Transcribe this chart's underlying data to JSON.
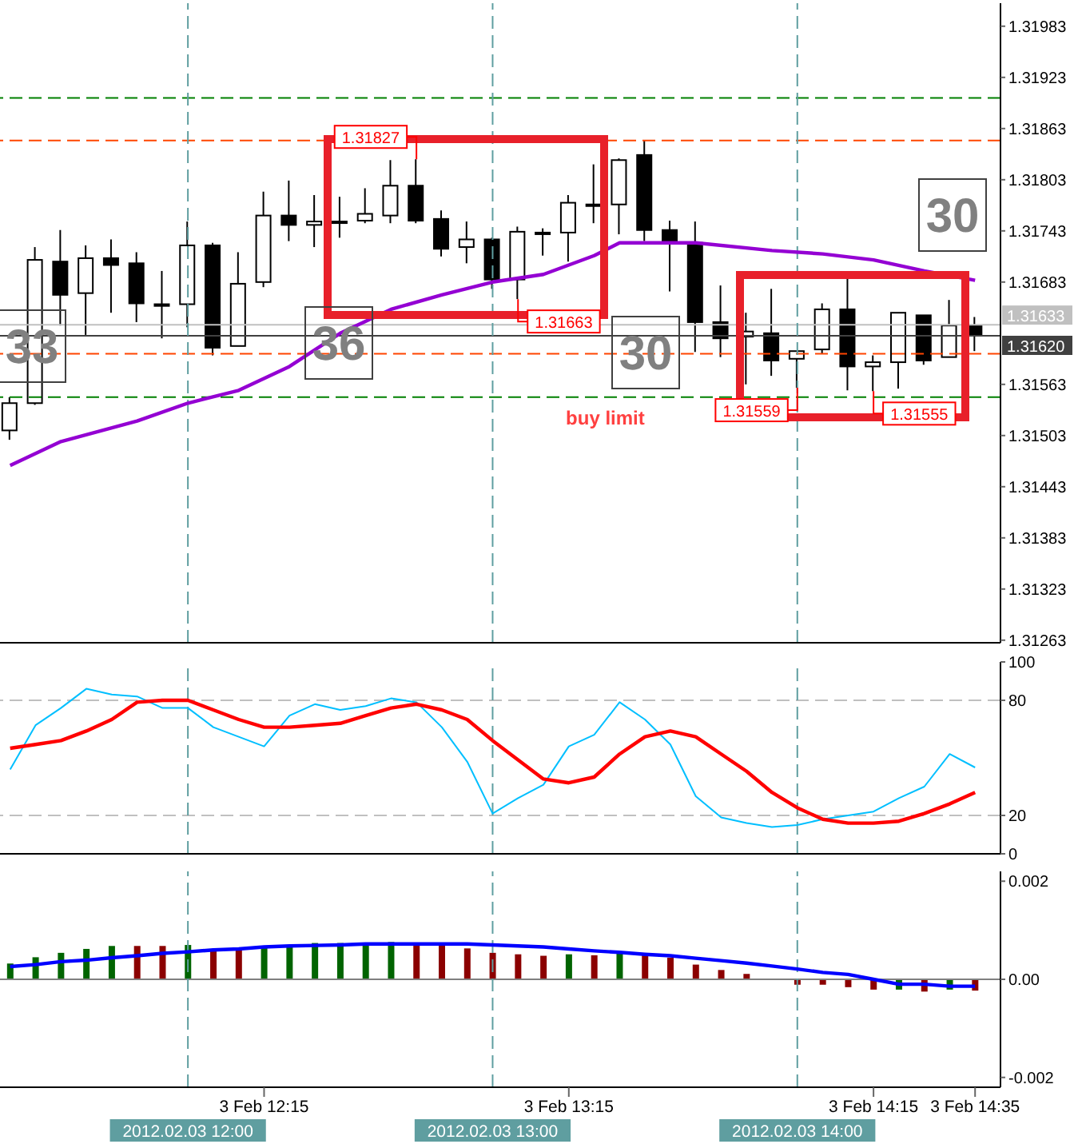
{
  "chart_data": [
    {
      "type": "candlestick",
      "x": [
        "2012-02-03T11:25",
        "2012-02-03T11:30",
        "2012-02-03T11:35",
        "2012-02-03T11:40",
        "2012-02-03T11:45",
        "2012-02-03T11:50",
        "2012-02-03T11:55",
        "2012-02-03T12:00",
        "2012-02-03T12:05",
        "2012-02-03T12:10",
        "2012-02-03T12:15",
        "2012-02-03T12:20",
        "2012-02-03T12:25",
        "2012-02-03T12:30",
        "2012-02-03T12:35",
        "2012-02-03T12:40",
        "2012-02-03T12:45",
        "2012-02-03T12:50",
        "2012-02-03T12:55",
        "2012-02-03T13:00",
        "2012-02-03T13:05",
        "2012-02-03T13:10",
        "2012-02-03T13:15",
        "2012-02-03T13:20",
        "2012-02-03T13:25",
        "2012-02-03T13:30",
        "2012-02-03T13:35",
        "2012-02-03T13:40",
        "2012-02-03T13:45",
        "2012-02-03T13:50",
        "2012-02-03T13:55",
        "2012-02-03T14:00",
        "2012-02-03T14:05",
        "2012-02-03T14:10",
        "2012-02-03T14:15",
        "2012-02-03T14:20",
        "2012-02-03T14:25",
        "2012-02-03T14:30",
        "2012-02-03T14:35"
      ],
      "ohlc": [
        [
          1.31509,
          1.31548,
          1.31498,
          1.31541
        ],
        [
          1.31541,
          1.31724,
          1.31539,
          1.31709
        ],
        [
          1.31707,
          1.31744,
          1.31632,
          1.31668
        ],
        [
          1.3167,
          1.31726,
          1.31621,
          1.31711
        ],
        [
          1.31711,
          1.31733,
          1.31647,
          1.31703
        ],
        [
          1.31705,
          1.31718,
          1.31636,
          1.31658
        ],
        [
          1.31657,
          1.31696,
          1.31617,
          1.31655
        ],
        [
          1.31657,
          1.31754,
          1.3163,
          1.31726
        ],
        [
          1.31726,
          1.31729,
          1.31597,
          1.31606
        ],
        [
          1.31608,
          1.31718,
          1.31608,
          1.31681
        ],
        [
          1.31683,
          1.31789,
          1.31677,
          1.31761
        ],
        [
          1.31761,
          1.31802,
          1.31731,
          1.3175
        ],
        [
          1.3175,
          1.31785,
          1.31724,
          1.31754
        ],
        [
          1.31754,
          1.31783,
          1.31735,
          1.31754
        ],
        [
          1.31755,
          1.31793,
          1.31752,
          1.31763
        ],
        [
          1.31761,
          1.31826,
          1.31752,
          1.31796
        ],
        [
          1.31796,
          1.31827,
          1.31752,
          1.31755
        ],
        [
          1.31757,
          1.31767,
          1.31713,
          1.31722
        ],
        [
          1.31724,
          1.31754,
          1.31705,
          1.31733
        ],
        [
          1.31733,
          1.31735,
          1.31675,
          1.31686
        ],
        [
          1.31686,
          1.31748,
          1.31663,
          1.31742
        ],
        [
          1.31741,
          1.31746,
          1.31714,
          1.3174
        ],
        [
          1.31741,
          1.31785,
          1.31707,
          1.31776
        ],
        [
          1.31774,
          1.31821,
          1.31752,
          1.31774
        ],
        [
          1.31774,
          1.31828,
          1.31739,
          1.31826
        ],
        [
          1.31832,
          1.31849,
          1.31731,
          1.31744
        ],
        [
          1.31744,
          1.31755,
          1.31672,
          1.31729
        ],
        [
          1.31729,
          1.31754,
          1.31601,
          1.31636
        ],
        [
          1.31636,
          1.31679,
          1.31595,
          1.31617
        ],
        [
          1.31619,
          1.31647,
          1.31563,
          1.31625
        ],
        [
          1.31623,
          1.31675,
          1.31573,
          1.31591
        ],
        [
          1.31593,
          1.31602,
          1.31559,
          1.31602
        ],
        [
          1.31604,
          1.31658,
          1.31599,
          1.31651
        ],
        [
          1.31651,
          1.31692,
          1.31556,
          1.31584
        ],
        [
          1.31584,
          1.31597,
          1.31555,
          1.31589
        ],
        [
          1.31589,
          1.31647,
          1.31558,
          1.31647
        ],
        [
          1.31644,
          1.31644,
          1.31586,
          1.31591
        ],
        [
          1.31595,
          1.31662,
          1.31595,
          1.31632
        ],
        [
          1.31632,
          1.31642,
          1.31602,
          1.3162
        ]
      ],
      "series": [
        {
          "type": "line",
          "color": "#9400d3",
          "x": [
            "2012-02-03T11:25",
            "2012-02-03T11:35",
            "2012-02-03T11:50",
            "2012-02-03T12:00",
            "2012-02-03T12:10",
            "2012-02-03T12:20",
            "2012-02-03T12:30",
            "2012-02-03T12:40",
            "2012-02-03T12:50",
            "2012-02-03T13:00",
            "2012-02-03T13:10",
            "2012-02-03T13:20",
            "2012-02-03T13:25",
            "2012-02-03T13:40",
            "2012-02-03T13:55",
            "2012-02-03T14:05",
            "2012-02-03T14:15",
            "2012-02-03T14:25",
            "2012-02-03T14:35"
          ],
          "values": [
            1.31468,
            1.31496,
            1.3152,
            1.31541,
            1.31556,
            1.31584,
            1.31623,
            1.31651,
            1.31668,
            1.31683,
            1.31692,
            1.31714,
            1.31729,
            1.31729,
            1.3172,
            1.31716,
            1.31709,
            1.31696,
            1.31685
          ]
        }
      ],
      "xlim": [
        "2012-02-03T11:23",
        "2012-02-03T14:40"
      ],
      "ylim": [
        1.3126,
        1.3201
      ],
      "yticks": [
        1.31263,
        1.31323,
        1.31383,
        1.31443,
        1.31503,
        1.31563,
        1.31683,
        1.31743,
        1.31803,
        1.31863,
        1.31923,
        1.31983
      ],
      "tick_labels": "y",
      "ref_lines": [
        {
          "axis": "y",
          "value": 1.31899,
          "color": "#008000",
          "line_style": "dashed"
        },
        {
          "axis": "y",
          "value": 1.31849,
          "color": "#ff4500",
          "line_style": "dashed"
        },
        {
          "axis": "y",
          "value": 1.31599,
          "color": "#ff4500",
          "line_style": "dashed"
        },
        {
          "axis": "y",
          "value": 1.31548,
          "label": "buy limit",
          "color": "#008000",
          "line_style": "dashed"
        },
        {
          "axis": "y",
          "value": 1.31633,
          "label": "1.31633",
          "color": "#c0c0c0"
        },
        {
          "axis": "y",
          "value": 1.3162,
          "label": "1.31620",
          "color": "#404040"
        },
        {
          "axis": "x",
          "value": "2012-02-03T12:00",
          "color": "#5f9ea0",
          "line_style": "dashed"
        },
        {
          "axis": "x",
          "value": "2012-02-03T13:00",
          "color": "#5f9ea0",
          "line_style": "dashed"
        },
        {
          "axis": "x",
          "value": "2012-02-03T14:00",
          "color": "#5f9ea0",
          "line_style": "dashed"
        }
      ],
      "annotations": [
        {
          "text": "1.31827",
          "x": "2012-02-03T12:45",
          "y": 1.31827
        },
        {
          "text": "1.31663",
          "x": "2012-02-03T13:05",
          "y": 1.31663
        },
        {
          "text": "1.31559",
          "x": "2012-02-03T14:00",
          "y": 1.31559
        },
        {
          "text": "1.31555",
          "x": "2012-02-03T14:15",
          "y": 1.31555
        },
        "33",
        "36",
        "30",
        "30"
      ]
    },
    {
      "type": "line",
      "x": [
        "2012-02-03T11:25",
        "2012-02-03T11:30",
        "2012-02-03T11:35",
        "2012-02-03T11:40",
        "2012-02-03T11:45",
        "2012-02-03T11:50",
        "2012-02-03T11:55",
        "2012-02-03T12:00",
        "2012-02-03T12:05",
        "2012-02-03T12:10",
        "2012-02-03T12:15",
        "2012-02-03T12:20",
        "2012-02-03T12:25",
        "2012-02-03T12:30",
        "2012-02-03T12:35",
        "2012-02-03T12:40",
        "2012-02-03T12:45",
        "2012-02-03T12:50",
        "2012-02-03T12:55",
        "2012-02-03T13:00",
        "2012-02-03T13:05",
        "2012-02-03T13:10",
        "2012-02-03T13:15",
        "2012-02-03T13:20",
        "2012-02-03T13:25",
        "2012-02-03T13:30",
        "2012-02-03T13:35",
        "2012-02-03T13:40",
        "2012-02-03T13:45",
        "2012-02-03T13:50",
        "2012-02-03T13:55",
        "2012-02-03T14:00",
        "2012-02-03T14:05",
        "2012-02-03T14:10",
        "2012-02-03T14:15",
        "2012-02-03T14:20",
        "2012-02-03T14:25",
        "2012-02-03T14:30",
        "2012-02-03T14:35"
      ],
      "series": [
        {
          "color": "#00bfff",
          "values": [
            44,
            67,
            76,
            86,
            83,
            82,
            76,
            76,
            66,
            61,
            56,
            72,
            78,
            75,
            77,
            81,
            79,
            66,
            48,
            21,
            29,
            36,
            56,
            62,
            79,
            70,
            57,
            30,
            19,
            16,
            14,
            15,
            18,
            20,
            22,
            29,
            35,
            52,
            45
          ]
        },
        {
          "color": "#ff0000",
          "values": [
            55,
            57,
            59,
            64,
            70,
            79,
            80,
            80,
            75,
            70,
            66,
            66,
            67,
            68,
            72,
            76,
            78,
            75,
            70,
            59,
            49,
            39,
            37,
            40,
            52,
            61,
            64,
            61,
            52,
            43,
            32,
            24,
            18,
            16,
            16,
            17,
            21,
            26,
            32
          ]
        }
      ],
      "xlim": [
        "2012-02-03T11:23",
        "2012-02-03T14:40"
      ],
      "ylim": [
        0,
        100
      ],
      "yticks": [
        0,
        20,
        80,
        100
      ],
      "tick_labels": "y",
      "ref_lines": [
        {
          "axis": "y",
          "value": 20,
          "color": "#c0c0c0",
          "line_style": "dashed"
        },
        {
          "axis": "y",
          "value": 80,
          "color": "#c0c0c0",
          "line_style": "dashed"
        },
        {
          "axis": "x",
          "value": "2012-02-03T12:00",
          "color": "#5f9ea0",
          "line_style": "dashed"
        },
        {
          "axis": "x",
          "value": "2012-02-03T13:00",
          "color": "#5f9ea0",
          "line_style": "dashed"
        },
        {
          "axis": "x",
          "value": "2012-02-03T14:00",
          "color": "#5f9ea0",
          "line_style": "dashed"
        }
      ]
    },
    {
      "type": "bar",
      "x": [
        "2012-02-03T11:25",
        "2012-02-03T11:30",
        "2012-02-03T11:35",
        "2012-02-03T11:40",
        "2012-02-03T11:45",
        "2012-02-03T11:50",
        "2012-02-03T11:55",
        "2012-02-03T12:00",
        "2012-02-03T12:05",
        "2012-02-03T12:10",
        "2012-02-03T12:15",
        "2012-02-03T12:20",
        "2012-02-03T12:25",
        "2012-02-03T12:30",
        "2012-02-03T12:35",
        "2012-02-03T12:40",
        "2012-02-03T12:45",
        "2012-02-03T12:50",
        "2012-02-03T12:55",
        "2012-02-03T13:00",
        "2012-02-03T13:05",
        "2012-02-03T13:10",
        "2012-02-03T13:15",
        "2012-02-03T13:20",
        "2012-02-03T13:25",
        "2012-02-03T13:30",
        "2012-02-03T13:35",
        "2012-02-03T13:40",
        "2012-02-03T13:45",
        "2012-02-03T13:50",
        "2012-02-03T13:55",
        "2012-02-03T14:00",
        "2012-02-03T14:05",
        "2012-02-03T14:10",
        "2012-02-03T14:15",
        "2012-02-03T14:20",
        "2012-02-03T14:25",
        "2012-02-03T14:30",
        "2012-02-03T14:35"
      ],
      "series": [
        {
          "type": "bar",
          "colors": [
            "#006400",
            "#006400",
            "#006400",
            "#006400",
            "#006400",
            "#8b0000",
            "#8b0000",
            "#006400",
            "#8b0000",
            "#8b0000",
            "#006400",
            "#006400",
            "#006400",
            "#006400",
            "#006400",
            "#006400",
            "#8b0000",
            "#8b0000",
            "#8b0000",
            "#8b0000",
            "#8b0000",
            "#8b0000",
            "#006400",
            "#8b0000",
            "#006400",
            "#8b0000",
            "#8b0000",
            "#8b0000",
            "#8b0000",
            "#8b0000",
            "#8b0000",
            "#8b0000",
            "#8b0000",
            "#8b0000",
            "#8b0000",
            "#006400",
            "#8b0000",
            "#006400",
            "#8b0000"
          ],
          "values": [
            0.00032,
            0.00045,
            0.00054,
            0.00062,
            0.00068,
            0.00068,
            0.00068,
            0.0007,
            0.00061,
            0.00061,
            0.00068,
            0.0007,
            0.00074,
            0.00074,
            0.00074,
            0.00076,
            0.00072,
            0.00072,
            0.00063,
            0.00054,
            0.00051,
            0.00048,
            0.00051,
            0.00049,
            0.00056,
            0.00049,
            0.00044,
            0.0003,
            0.00019,
            0.00011,
            0,
            -0.00011,
            -0.00011,
            -0.00016,
            -0.00021,
            -0.00021,
            -0.00025,
            -0.00021,
            -0.00023
          ]
        },
        {
          "type": "line",
          "color": "#0000ff",
          "values": [
            0.00026,
            0.0003,
            0.00036,
            0.00039,
            0.00044,
            0.00048,
            0.00053,
            0.00056,
            0.0006,
            0.00062,
            0.00066,
            0.00068,
            0.00069,
            0.0007,
            0.00072,
            0.00072,
            0.00072,
            0.00072,
            0.00072,
            0.0007,
            0.00068,
            0.00066,
            0.00062,
            0.00058,
            0.00055,
            0.00051,
            0.00048,
            0.00043,
            0.00038,
            0.00033,
            0.00027,
            0.00021,
            0.00014,
            0.0001,
            0,
            -0.0001,
            -0.0001,
            -0.00014,
            -0.00014
          ]
        }
      ],
      "xlim": [
        "2012-02-03T11:23",
        "2012-02-03T14:40"
      ],
      "ylim": [
        -0.0022,
        0.0022
      ],
      "yticks": [
        -0.002,
        {
          "value": 0,
          "label": "0.00"
        },
        0.002
      ],
      "xticks": [
        {
          "value": "2012-02-03T12:15",
          "label": "3 Feb 12:15"
        },
        {
          "value": "2012-02-03T13:15",
          "label": "3 Feb 13:15"
        },
        {
          "value": "2012-02-03T14:15",
          "label": "3 Feb 14:15"
        },
        {
          "value": "2012-02-03T14:35",
          "label": "3 Feb 14:35"
        }
      ],
      "ref_lines": [
        {
          "axis": "y",
          "value": 0,
          "color": "#808080"
        },
        {
          "axis": "x",
          "value": "2012-02-03T12:00",
          "label": "2012.02.03 12:00",
          "color": "#5f9ea0",
          "line_style": "dashed"
        },
        {
          "axis": "x",
          "value": "2012-02-03T13:00",
          "label": "2012.02.03 13:00",
          "color": "#5f9ea0",
          "line_style": "dashed"
        },
        {
          "axis": "x",
          "value": "2012-02-03T14:00",
          "label": "2012.02.03 14:00",
          "color": "#5f9ea0",
          "line_style": "dashed"
        }
      ]
    }
  ]
}
